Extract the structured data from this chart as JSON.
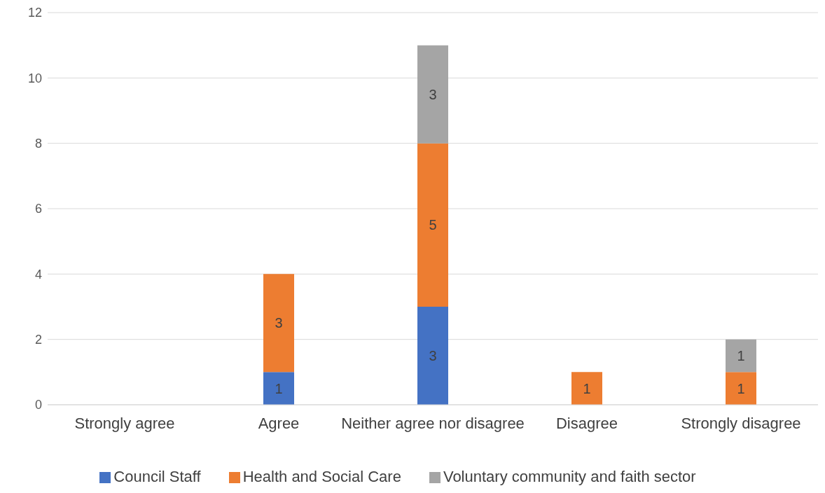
{
  "chart_data": {
    "type": "bar",
    "stacked": true,
    "categories": [
      "Strongly agree",
      "Agree",
      "Neither agree nor disagree",
      "Disagree",
      "Strongly disagree"
    ],
    "series": [
      {
        "name": "Council Staff",
        "color": "#4472c4",
        "values": [
          null,
          1,
          3,
          null,
          null
        ]
      },
      {
        "name": "Health and Social Care",
        "color": "#ed7d31",
        "values": [
          null,
          3,
          5,
          1,
          1
        ]
      },
      {
        "name": "Voluntary community and faith sector",
        "color": "#a5a5a5",
        "values": [
          null,
          null,
          3,
          null,
          1
        ]
      }
    ],
    "ylim": [
      0,
      12
    ],
    "yticks": [
      0,
      2,
      4,
      6,
      8,
      10,
      12
    ],
    "grid": "y",
    "legend": "bottom",
    "data_labels": true
  }
}
